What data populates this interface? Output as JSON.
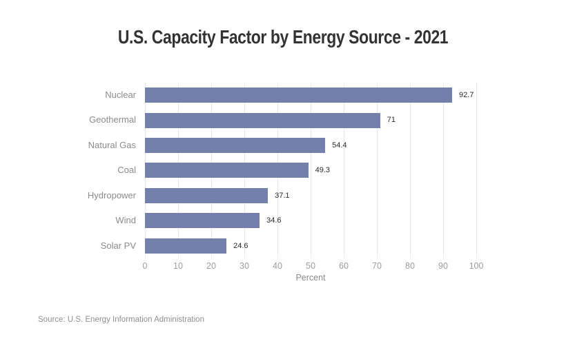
{
  "header": {
    "title": "U.S. Capacity Factor by Energy Source - 2021"
  },
  "footer": {
    "source": "Source: U.S. Energy Information Administration"
  },
  "colors": {
    "bar": "#7480AC",
    "title_text": "#333333",
    "category_text": "#8b8b8b",
    "value_text": "#2a2a2a",
    "tick_text": "#9e9e9e",
    "gridline": "#e9e9e9",
    "background": "#ffffff"
  },
  "chart_data": {
    "type": "bar",
    "orientation": "horizontal",
    "title": "U.S. Capacity Factor by Energy Source - 2021",
    "categories": [
      "Nuclear",
      "Geothermal",
      "Natural Gas",
      "Coal",
      "Hydropower",
      "Wind",
      "Solar PV"
    ],
    "values": [
      92.7,
      71,
      54.4,
      49.3,
      37.1,
      34.6,
      24.6
    ],
    "value_labels": [
      "92.7",
      "71",
      "54.4",
      "49.3",
      "37.1",
      "34.6",
      "24.6"
    ],
    "xlabel": "Percent",
    "ylabel": "",
    "xlim": [
      0,
      100
    ],
    "xticks": [
      0,
      10,
      20,
      30,
      40,
      50,
      60,
      70,
      80,
      90,
      100
    ],
    "grid": true,
    "legend": false,
    "sorted": "descending"
  },
  "layout_note": ""
}
